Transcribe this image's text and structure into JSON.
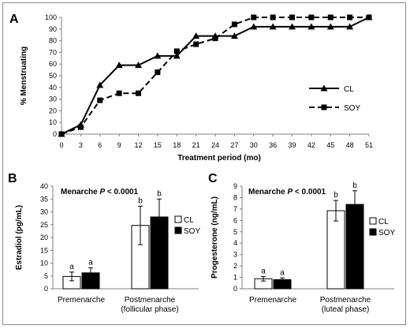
{
  "chart_data": [
    {
      "panel": "A",
      "type": "line",
      "x": [
        0,
        3,
        6,
        9,
        12,
        15,
        18,
        21,
        24,
        27,
        30,
        36,
        39,
        42,
        45,
        48,
        51
      ],
      "xlabel": "Treatment period (mo)",
      "ylabel": "% Menstruating",
      "ylim": [
        0,
        100
      ],
      "yticks": [
        0,
        10,
        20,
        30,
        40,
        50,
        60,
        70,
        80,
        90,
        100
      ],
      "series": [
        {
          "name": "CL",
          "marker": "triangle",
          "line": "solid",
          "values": [
            0,
            8,
            42,
            59,
            59,
            67,
            67,
            84,
            84,
            84,
            92,
            92,
            92,
            92,
            92,
            92,
            100
          ]
        },
        {
          "name": "SOY",
          "marker": "square",
          "line": "dashed",
          "values": [
            0,
            6,
            29,
            35,
            35,
            53,
            71,
            77,
            82,
            94,
            100,
            100,
            100,
            100,
            100,
            100,
            100
          ]
        }
      ],
      "legend_position": "right"
    },
    {
      "panel": "B",
      "type": "bar",
      "ylabel": "Estradiol (pg/mL)",
      "ylim": [
        0,
        40
      ],
      "yticks": [
        0,
        5,
        10,
        15,
        20,
        25,
        30,
        35,
        40
      ],
      "categories": [
        "Premenarche",
        "Postmenarche (follicular phase)"
      ],
      "category_lines": [
        [
          "Premenarche"
        ],
        [
          "Postmenarche",
          "(follicular phase)"
        ]
      ],
      "annotation": {
        "prefix": "Menarche ",
        "p": "P",
        "rest": " < 0.0001"
      },
      "series": [
        {
          "name": "CL",
          "fill": "#ffffff",
          "values": [
            4.8,
            24.7
          ],
          "errors": [
            1.7,
            7.5
          ],
          "letters": [
            "a",
            "b"
          ]
        },
        {
          "name": "SOY",
          "fill": "#000000",
          "values": [
            6.2,
            28.0
          ],
          "errors": [
            2.0,
            7.0
          ],
          "letters": [
            "a",
            "b"
          ]
        }
      ],
      "legend_position": "right"
    },
    {
      "panel": "C",
      "type": "bar",
      "ylabel": "Progesterone (ng/mL)",
      "ylim": [
        0,
        9
      ],
      "yticks": [
        0,
        1,
        2,
        3,
        4,
        5,
        6,
        7,
        8,
        9
      ],
      "categories": [
        "Premenarche",
        "Postmenarche (luteal phase)"
      ],
      "category_lines": [
        [
          "Premenarche"
        ],
        [
          "Postmenarche",
          "(luteal phase)"
        ]
      ],
      "annotation": {
        "prefix": "Menarche ",
        "p": "P",
        "rest": " < 0.0001"
      },
      "series": [
        {
          "name": "CL",
          "fill": "#ffffff",
          "values": [
            0.88,
            6.85
          ],
          "errors": [
            0.2,
            0.9
          ],
          "letters": [
            "a",
            "b"
          ]
        },
        {
          "name": "SOY",
          "fill": "#000000",
          "values": [
            0.8,
            7.4
          ],
          "errors": [
            0.15,
            1.2
          ],
          "letters": [
            "a",
            "b"
          ]
        }
      ],
      "legend_position": "right"
    }
  ],
  "colors": {
    "frame": "#8c8c8c",
    "axis": "#7f7f7f",
    "ink": "#000000"
  }
}
